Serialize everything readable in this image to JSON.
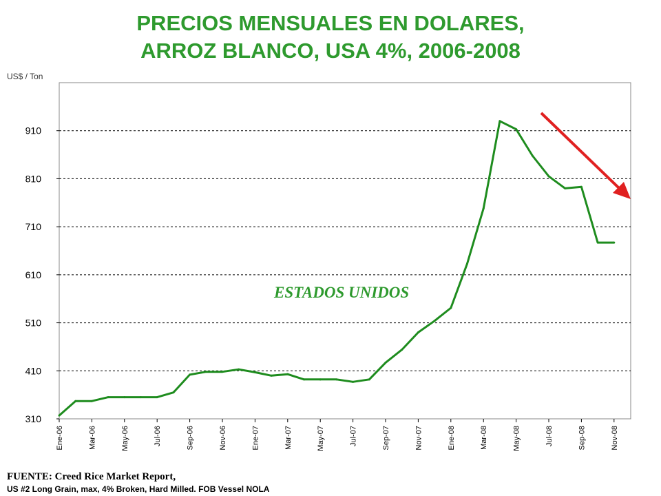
{
  "chart_data": {
    "type": "line",
    "title_line1": "PRECIOS MENSUALES EN DOLARES,",
    "title_line2": "ARROZ BLANCO, USA 4%, 2006-2008",
    "ylabel": "US$ / Ton",
    "yticks": [
      310,
      410,
      510,
      610,
      710,
      810,
      910
    ],
    "ylim": [
      310,
      1010
    ],
    "x_tick_labels": [
      "Ene-06",
      "Mar-06",
      "May-06",
      "Jul-06",
      "Sep-06",
      "Nov-06",
      "Ene-07",
      "Mar-07",
      "May-07",
      "Jul-07",
      "Sep-07",
      "Nov-07",
      "Ene-08",
      "Mar-08",
      "May-08",
      "Jul-08",
      "Sep-08",
      "Nov-08"
    ],
    "grid": "horizontal dashed",
    "annotation": "ESTADOS UNIDOS",
    "arrow_color": "#e02020",
    "line_color": "#1e8c1e",
    "series": [
      {
        "x": [
          "Ene-06",
          "Feb-06",
          "Mar-06",
          "Abr-06",
          "May-06",
          "Jun-06",
          "Jul-06",
          "Ago-06",
          "Sep-06",
          "Oct-06",
          "Nov-06",
          "Dic-06",
          "Ene-07",
          "Feb-07",
          "Mar-07",
          "Abr-07",
          "May-07",
          "Jun-07",
          "Jul-07",
          "Ago-07",
          "Sep-07",
          "Oct-07",
          "Nov-07",
          "Dic-07",
          "Ene-08",
          "Feb-08",
          "Mar-08",
          "Abr-08",
          "May-08",
          "Jun-08",
          "Jul-08",
          "Ago-08",
          "Sep-08",
          "Oct-08",
          "Nov-08"
        ],
        "values": [
          317,
          347,
          347,
          355,
          355,
          355,
          355,
          365,
          402,
          408,
          408,
          413,
          407,
          400,
          403,
          392,
          392,
          392,
          387,
          392,
          427,
          454,
          490,
          514,
          541,
          633,
          748,
          930,
          913,
          858,
          815,
          790,
          793,
          677,
          677
        ]
      }
    ],
    "footer_source": "FUENTE: Creed Rice Market Report,",
    "footer_note": "US #2 Long Grain, max, 4% Broken, Hard Milled. FOB Vessel NOLA"
  }
}
